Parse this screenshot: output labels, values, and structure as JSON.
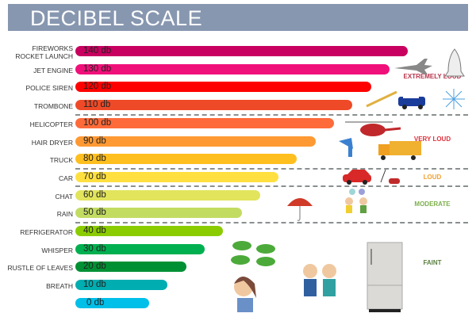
{
  "chart_data": {
    "type": "bar",
    "orientation": "horizontal",
    "title": "DECIBEL SCALE",
    "unit": "db",
    "categories": [
      "FIREWORKS|ROCKET LAUNCH",
      "JET ENGINE",
      "POLICE SIREN",
      "TROMBONE",
      "HELICOPTER",
      "HAIR DRYER",
      "TRUCK",
      "CAR",
      "CHAT",
      "RAIN",
      "REFRIGERATOR",
      "WHISPER",
      "RUSTLE OF LEAVES",
      "BREATH",
      ""
    ],
    "values": [
      140,
      130,
      120,
      110,
      100,
      90,
      80,
      70,
      60,
      50,
      40,
      30,
      20,
      10,
      0
    ],
    "value_labels": [
      "140 db",
      "130 db",
      "120 db",
      "110 db",
      "100 db",
      "90 db",
      "80 db",
      "70 db",
      "60 db",
      "50 db",
      "40 db",
      "30 db",
      "20 db",
      "10 db",
      "0 db"
    ],
    "colors": [
      "#c8005f",
      "#f0107a",
      "#ff0000",
      "#ee4a28",
      "#ff6a3a",
      "#ff9933",
      "#ffbf1f",
      "#ffe040",
      "#e2e45c",
      "#c2dc62",
      "#8acc00",
      "#00b050",
      "#009034",
      "#00adb0",
      "#00bfe8"
    ],
    "xlim": [
      0,
      140
    ],
    "grid": false,
    "groups": [
      {
        "label": "EXTREMELY LOUD",
        "range": [
          110,
          140
        ],
        "color": "#b8344c"
      },
      {
        "label": "VERY LOUD",
        "range": [
          80,
          100
        ],
        "color": "#e0303c"
      },
      {
        "label": "LOUD",
        "range": [
          70,
          70
        ],
        "color": "#f0a030"
      },
      {
        "label": "MODERATE",
        "range": [
          50,
          60
        ],
        "color": "#7cb04c"
      },
      {
        "label": "FAINT",
        "range": [
          0,
          40
        ],
        "color": "#5a8040"
      }
    ]
  }
}
